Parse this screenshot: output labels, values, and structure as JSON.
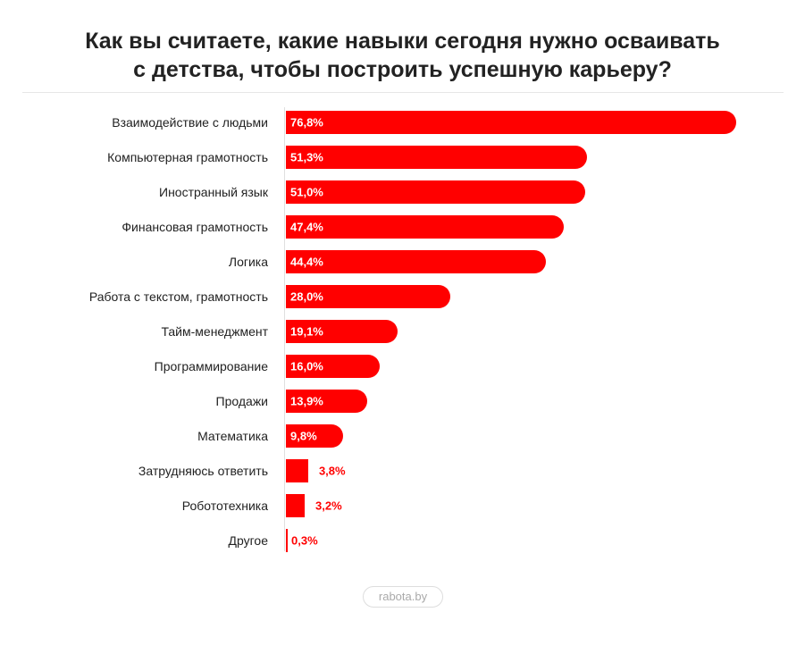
{
  "chart_data": {
    "type": "bar",
    "orientation": "horizontal",
    "title_lines": [
      "Как вы считаете, какие навыки сегодня нужно осваивать",
      "с детства, чтобы построить успешную карьеру?"
    ],
    "categories": [
      "Взаимодействие с людьми",
      "Компьютерная грамотность",
      "Иностранный язык",
      "Финансовая грамотность",
      "Логика",
      "Работа с текстом, грамотность",
      "Тайм-менеджмент",
      "Программирование",
      "Продажи",
      "Математика",
      "Затрудняюсь ответить",
      "Робототехника",
      "Другое"
    ],
    "values": [
      76.8,
      51.3,
      51.0,
      47.4,
      44.4,
      28.0,
      19.1,
      16.0,
      13.9,
      9.8,
      3.8,
      3.2,
      0.3
    ],
    "value_labels": [
      "76,8%",
      "51,3%",
      "51,0%",
      "47,4%",
      "44,4%",
      "28,0%",
      "19,1%",
      "16,0%",
      "13,9%",
      "9,8%",
      "3,8%",
      "3,2%",
      "0,3%"
    ],
    "bar_color": "#ff0000",
    "xlim": [
      0,
      76.8
    ]
  },
  "footer": "rabota.by"
}
